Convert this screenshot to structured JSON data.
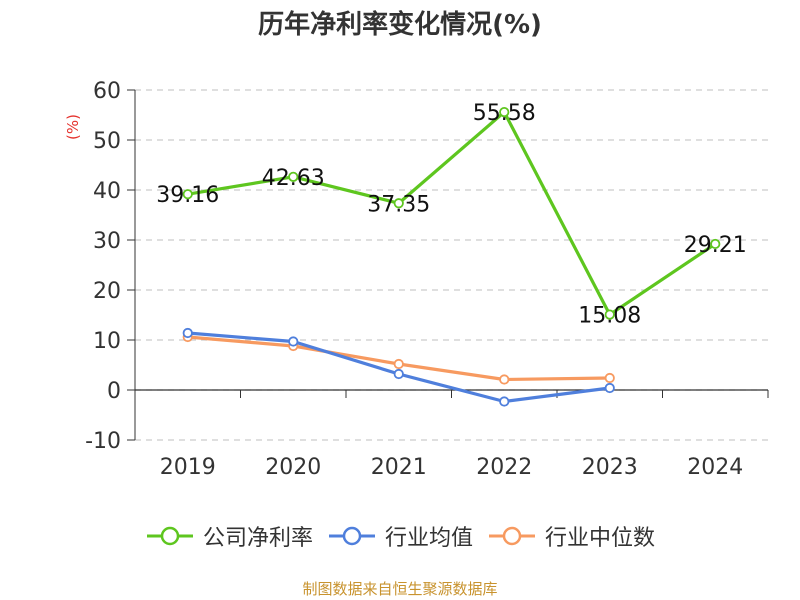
{
  "chart_data": {
    "type": "line",
    "title": "历年净利率变化情况(%)",
    "ylabel": "(%)",
    "ylim": [
      -10,
      60
    ],
    "yticks": [
      -10,
      0,
      10,
      20,
      30,
      40,
      50,
      60
    ],
    "grid": true,
    "legend_position": "bottom",
    "categories": [
      "2019",
      "2020",
      "2021",
      "2022",
      "2023",
      "2024"
    ],
    "series": [
      {
        "name": "公司净利率",
        "color": "#5ec61f",
        "values": [
          39.16,
          42.63,
          37.35,
          55.58,
          15.08,
          29.21
        ],
        "show_labels": true
      },
      {
        "name": "行业均值",
        "color": "#4f7fdc",
        "values": [
          11.4,
          9.7,
          3.2,
          -2.3,
          0.4,
          null
        ],
        "show_labels": false
      },
      {
        "name": "行业中位数",
        "color": "#f79a60",
        "values": [
          10.6,
          8.8,
          5.2,
          2.1,
          2.4,
          null
        ],
        "show_labels": false
      }
    ]
  },
  "source": "制图数据来自恒生聚源数据库"
}
